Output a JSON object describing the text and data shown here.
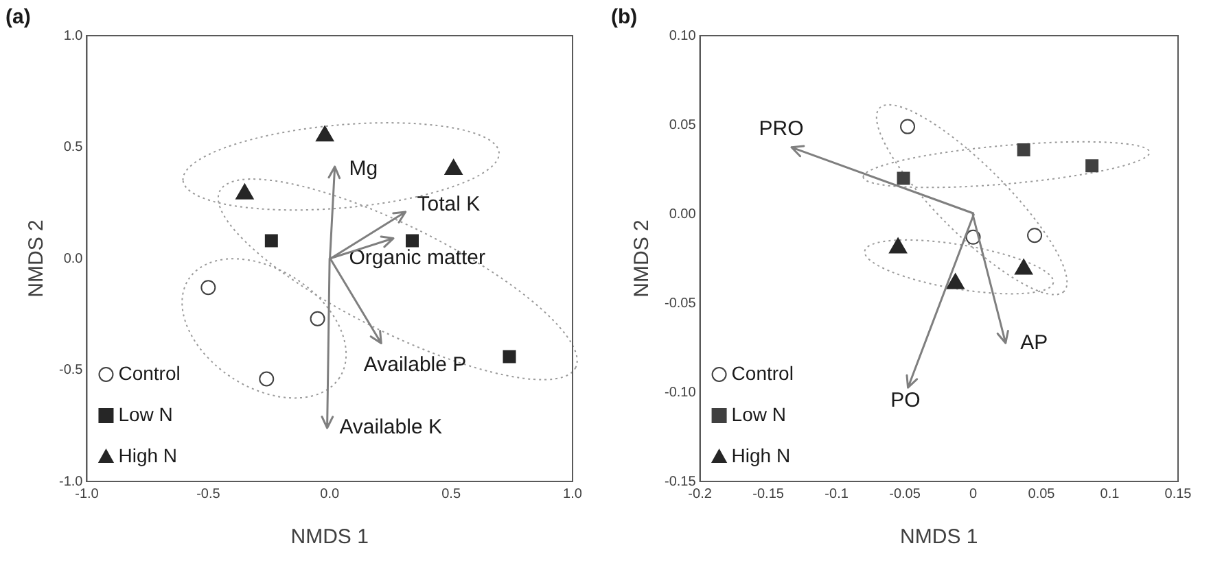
{
  "chart_data": [
    {
      "type": "scatter",
      "title": "(a)",
      "xlabel": "NMDS 1",
      "ylabel": "NMDS 2",
      "xlim": [
        -1,
        1
      ],
      "ylim": [
        -1,
        1
      ],
      "xticks": [
        {
          "value": -1,
          "label": "-1.0"
        },
        -0.5,
        {
          "value": 0,
          "label": "0.0"
        },
        0.5,
        {
          "value": 1,
          "label": "1.0"
        }
      ],
      "yticks": [
        {
          "value": -1,
          "label": "-1.0"
        },
        -0.5,
        {
          "value": 0,
          "label": "0.0"
        },
        0.5,
        {
          "value": 1,
          "label": "1.0"
        }
      ],
      "legend": "bottom left",
      "series": [
        {
          "name": "Control",
          "color": "#404040",
          "marker": "circle",
          "x": [
            -0.5,
            -0.05,
            -0.26
          ],
          "values": [
            -0.13,
            -0.27,
            -0.54
          ]
        },
        {
          "name": "Low N",
          "color": "#262626",
          "marker": "square",
          "x": [
            -0.24,
            0.34,
            0.74
          ],
          "values": [
            0.08,
            0.08,
            -0.44
          ]
        },
        {
          "name": "High N",
          "color": "#262626",
          "marker": "triangle",
          "x": [
            -0.02,
            -0.35,
            0.51
          ],
          "values": [
            0.55,
            0.29,
            0.4
          ]
        }
      ],
      "annotations": [
        "Mg",
        "Total K",
        "Organic matter",
        "Available P",
        "Available K"
      ]
    },
    {
      "type": "scatter",
      "title": "(b)",
      "xlabel": "NMDS 1",
      "ylabel": "NMDS 2",
      "xlim": [
        -0.2,
        0.15
      ],
      "ylim": [
        -0.15,
        0.1
      ],
      "xticks": [
        -0.2,
        -0.15,
        -0.1,
        -0.05,
        0,
        0.05,
        0.1,
        0.15
      ],
      "yticks": [
        -0.15,
        {
          "value": -0.1,
          "label": "-0.10"
        },
        -0.05,
        {
          "value": 0,
          "label": "0.00"
        },
        0.05,
        {
          "value": 0.1,
          "label": "0.10"
        }
      ],
      "legend": "bottom left",
      "series": [
        {
          "name": "Control",
          "color": "#404040",
          "marker": "circle",
          "x": [
            -0.048,
            0,
            0.045
          ],
          "values": [
            0.049,
            -0.013,
            -0.012
          ]
        },
        {
          "name": "Low N",
          "color": "#404040",
          "marker": "square",
          "x": [
            -0.051,
            0.037,
            0.087
          ],
          "values": [
            0.02,
            0.036,
            0.027
          ]
        },
        {
          "name": "High N",
          "color": "#262626",
          "marker": "triangle",
          "x": [
            -0.055,
            -0.013,
            0.037
          ],
          "values": [
            -0.019,
            -0.039,
            -0.031
          ]
        }
      ],
      "annotations": [
        "PRO",
        "PO",
        "AP"
      ]
    }
  ]
}
